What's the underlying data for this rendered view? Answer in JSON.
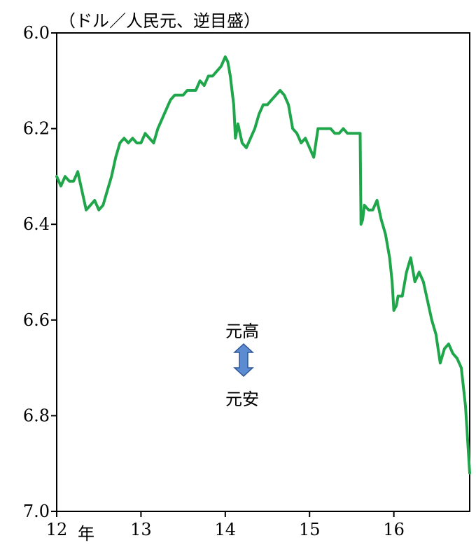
{
  "chart_data": {
    "type": "line",
    "unit_label": "（ドル／人民元、逆目盛）",
    "y_axis": {
      "min": 6.0,
      "max": 7.0,
      "inverted": true,
      "ticks": [
        6.0,
        6.2,
        6.4,
        6.6,
        6.8,
        7.0
      ],
      "tick_labels": [
        "6.0",
        "6.2",
        "6.4",
        "6.6",
        "6.8",
        "7.0"
      ]
    },
    "x_axis": {
      "min": 2012.0,
      "max": 2016.9,
      "ticks": [
        2012,
        2013,
        2014,
        2015,
        2016
      ],
      "tick_labels": [
        "12",
        "13",
        "14",
        "15",
        "16"
      ],
      "first_tick_suffix": "年"
    },
    "annotation": {
      "top": "元高",
      "bottom": "元安",
      "arrow_color": "#5b8bd0"
    },
    "series": [
      {
        "color": "#1fa64a",
        "x": [
          2012.0,
          2012.05,
          2012.1,
          2012.15,
          2012.2,
          2012.25,
          2012.3,
          2012.35,
          2012.4,
          2012.45,
          2012.5,
          2012.55,
          2012.6,
          2012.65,
          2012.7,
          2012.75,
          2012.8,
          2012.85,
          2012.9,
          2012.95,
          2013.0,
          2013.05,
          2013.1,
          2013.15,
          2013.2,
          2013.25,
          2013.3,
          2013.35,
          2013.4,
          2013.45,
          2013.5,
          2013.55,
          2013.6,
          2013.65,
          2013.7,
          2013.75,
          2013.8,
          2013.85,
          2013.9,
          2013.95,
          2014.0,
          2014.03,
          2014.06,
          2014.08,
          2014.1,
          2014.12,
          2014.15,
          2014.2,
          2014.25,
          2014.3,
          2014.35,
          2014.4,
          2014.45,
          2014.5,
          2014.55,
          2014.6,
          2014.65,
          2014.7,
          2014.75,
          2014.8,
          2014.85,
          2014.9,
          2014.95,
          2015.0,
          2015.05,
          2015.1,
          2015.15,
          2015.2,
          2015.25,
          2015.3,
          2015.35,
          2015.4,
          2015.45,
          2015.5,
          2015.55,
          2015.6,
          2015.61,
          2015.63,
          2015.65,
          2015.7,
          2015.75,
          2015.8,
          2015.85,
          2015.9,
          2015.95,
          2015.98,
          2016.0,
          2016.03,
          2016.05,
          2016.1,
          2016.15,
          2016.2,
          2016.25,
          2016.3,
          2016.35,
          2016.4,
          2016.45,
          2016.5,
          2016.55,
          2016.6,
          2016.65,
          2016.7,
          2016.75,
          2016.8,
          2016.85,
          2016.9
        ],
        "y": [
          6.3,
          6.32,
          6.3,
          6.31,
          6.31,
          6.29,
          6.33,
          6.37,
          6.36,
          6.35,
          6.37,
          6.36,
          6.33,
          6.3,
          6.26,
          6.23,
          6.22,
          6.23,
          6.22,
          6.23,
          6.23,
          6.21,
          6.22,
          6.23,
          6.2,
          6.18,
          6.16,
          6.14,
          6.13,
          6.13,
          6.13,
          6.12,
          6.12,
          6.12,
          6.1,
          6.11,
          6.09,
          6.09,
          6.08,
          6.07,
          6.05,
          6.06,
          6.09,
          6.12,
          6.15,
          6.22,
          6.19,
          6.23,
          6.24,
          6.22,
          6.2,
          6.17,
          6.15,
          6.15,
          6.14,
          6.13,
          6.12,
          6.13,
          6.15,
          6.2,
          6.21,
          6.23,
          6.22,
          6.24,
          6.26,
          6.2,
          6.2,
          6.2,
          6.2,
          6.21,
          6.21,
          6.2,
          6.21,
          6.21,
          6.21,
          6.21,
          6.4,
          6.39,
          6.36,
          6.37,
          6.37,
          6.35,
          6.39,
          6.42,
          6.47,
          6.52,
          6.58,
          6.57,
          6.55,
          6.55,
          6.5,
          6.47,
          6.52,
          6.5,
          6.52,
          6.56,
          6.6,
          6.63,
          6.69,
          6.66,
          6.65,
          6.67,
          6.68,
          6.7,
          6.78,
          6.92
        ]
      }
    ]
  }
}
